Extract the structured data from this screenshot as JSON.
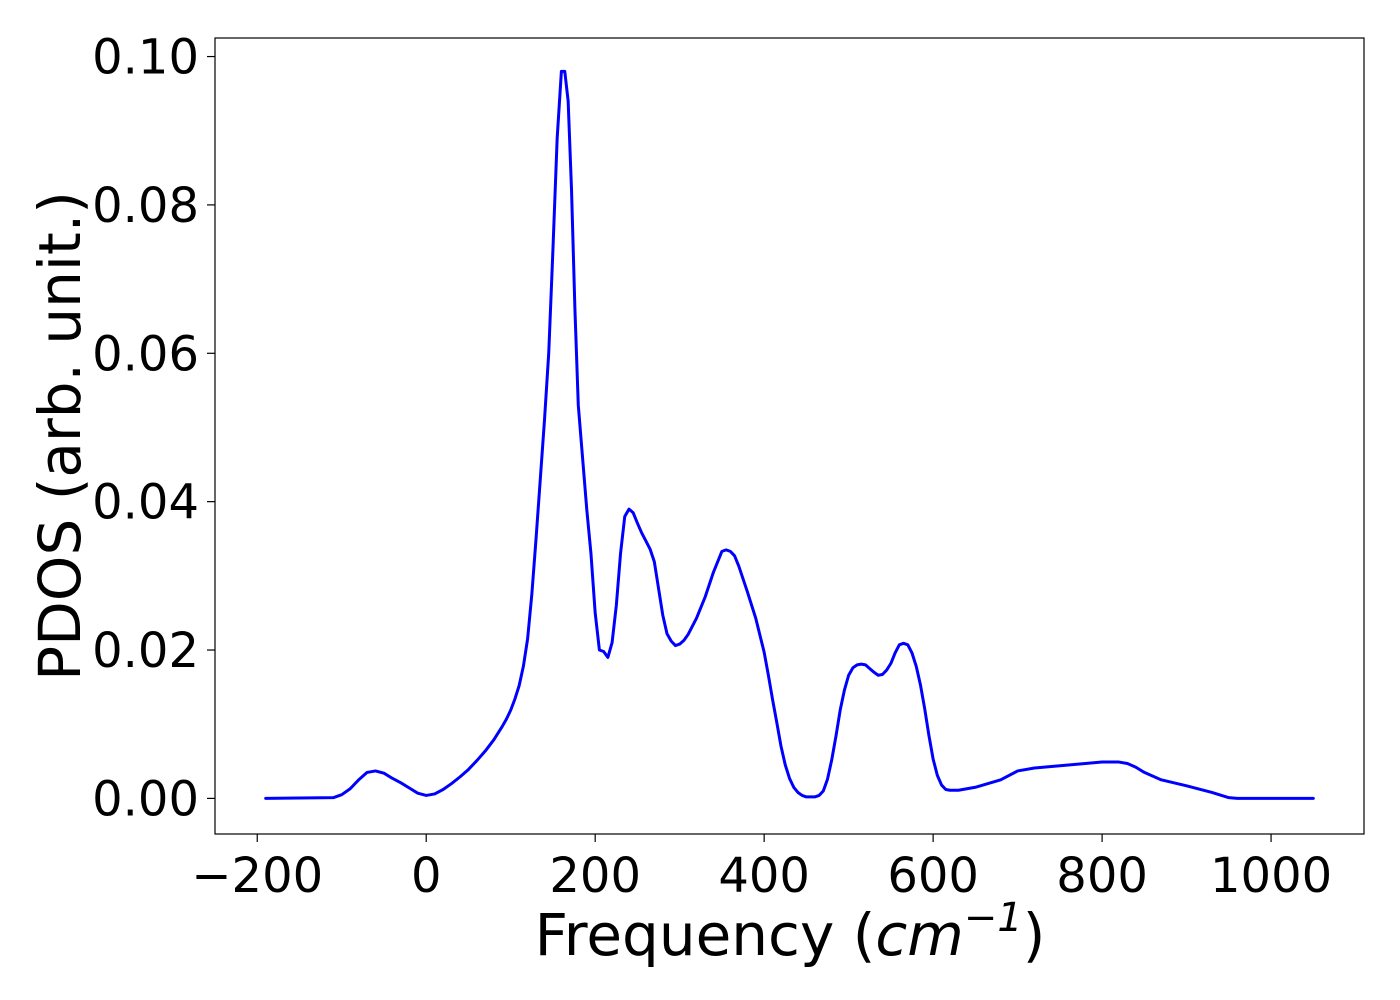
{
  "chart_data": {
    "type": "line",
    "title": "",
    "xlabel": "Frequency (cm^-1)",
    "xlabel_parts": {
      "prefix": "Frequency (",
      "unit_base": "cm",
      "unit_exp": "−1",
      "suffix": ")"
    },
    "ylabel": "PDOS (arb. unit.)",
    "xlim": [
      -250,
      1110
    ],
    "ylim": [
      -0.0048,
      0.1025
    ],
    "x_ticks": [
      -200,
      0,
      200,
      400,
      600,
      800,
      1000
    ],
    "x_tick_labels": [
      "−200",
      "0",
      "200",
      "400",
      "600",
      "800",
      "1000"
    ],
    "y_ticks": [
      0.0,
      0.02,
      0.04,
      0.06,
      0.08,
      0.1
    ],
    "y_tick_labels": [
      "0.00",
      "0.02",
      "0.04",
      "0.06",
      "0.08",
      "0.10"
    ],
    "grid": false,
    "series": [
      {
        "color": "#0000ff",
        "x": [
          -190,
          -110,
          -100,
          -90,
          -80,
          -70,
          -60,
          -50,
          -40,
          -30,
          -20,
          -10,
          0,
          10,
          20,
          30,
          40,
          50,
          60,
          70,
          80,
          90,
          95,
          100,
          105,
          110,
          115,
          120,
          125,
          130,
          135,
          140,
          145,
          150,
          155,
          160,
          164,
          168,
          172,
          176,
          180,
          185,
          190,
          195,
          200,
          205,
          210,
          215,
          220,
          225,
          230,
          235,
          240,
          245,
          250,
          255,
          260,
          265,
          270,
          275,
          280,
          285,
          290,
          295,
          300,
          305,
          310,
          320,
          330,
          340,
          350,
          355,
          360,
          365,
          370,
          380,
          390,
          400,
          405,
          410,
          415,
          420,
          425,
          430,
          435,
          440,
          445,
          450,
          460,
          465,
          470,
          475,
          480,
          485,
          490,
          495,
          500,
          505,
          510,
          515,
          520,
          525,
          530,
          535,
          540,
          545,
          550,
          555,
          560,
          565,
          570,
          575,
          580,
          585,
          590,
          595,
          600,
          605,
          610,
          615,
          620,
          625,
          630,
          650,
          680,
          700,
          720,
          760,
          800,
          820,
          830,
          840,
          850,
          870,
          900,
          930,
          950,
          960,
          1000,
          1050
        ],
        "y": [
          0.0,
          0.0001,
          0.0005,
          0.0013,
          0.0025,
          0.0035,
          0.0037,
          0.0034,
          0.0027,
          0.0021,
          0.0014,
          0.0007,
          0.0004,
          0.0006,
          0.0012,
          0.002,
          0.0029,
          0.0039,
          0.0051,
          0.0064,
          0.0079,
          0.0097,
          0.0107,
          0.0119,
          0.0134,
          0.0152,
          0.0178,
          0.0215,
          0.0275,
          0.035,
          0.043,
          0.051,
          0.06,
          0.074,
          0.089,
          0.098,
          0.098,
          0.094,
          0.082,
          0.066,
          0.053,
          0.046,
          0.039,
          0.033,
          0.025,
          0.02,
          0.0198,
          0.019,
          0.021,
          0.026,
          0.033,
          0.038,
          0.039,
          0.0385,
          0.0371,
          0.0358,
          0.0347,
          0.0336,
          0.0319,
          0.0283,
          0.0247,
          0.0222,
          0.0212,
          0.0206,
          0.0208,
          0.0213,
          0.0221,
          0.0243,
          0.0271,
          0.0305,
          0.0333,
          0.0335,
          0.0333,
          0.0327,
          0.0313,
          0.0279,
          0.0243,
          0.0197,
          0.0166,
          0.0133,
          0.0102,
          0.007,
          0.0045,
          0.0027,
          0.0015,
          0.0008,
          0.0004,
          0.0002,
          0.0002,
          0.0004,
          0.001,
          0.0026,
          0.0052,
          0.0084,
          0.0119,
          0.0146,
          0.0166,
          0.0176,
          0.018,
          0.0181,
          0.018,
          0.0175,
          0.017,
          0.0166,
          0.0167,
          0.0173,
          0.0182,
          0.0196,
          0.0207,
          0.0209,
          0.0207,
          0.0196,
          0.0178,
          0.0153,
          0.0121,
          0.0085,
          0.0053,
          0.0031,
          0.0018,
          0.0012,
          0.0011,
          0.0011,
          0.0011,
          0.0015,
          0.0025,
          0.0037,
          0.0041,
          0.0045,
          0.0049,
          0.0049,
          0.0047,
          0.0042,
          0.0035,
          0.0025,
          0.0017,
          0.0008,
          0.0001,
          0.0,
          0.0,
          0.0
        ]
      }
    ]
  }
}
